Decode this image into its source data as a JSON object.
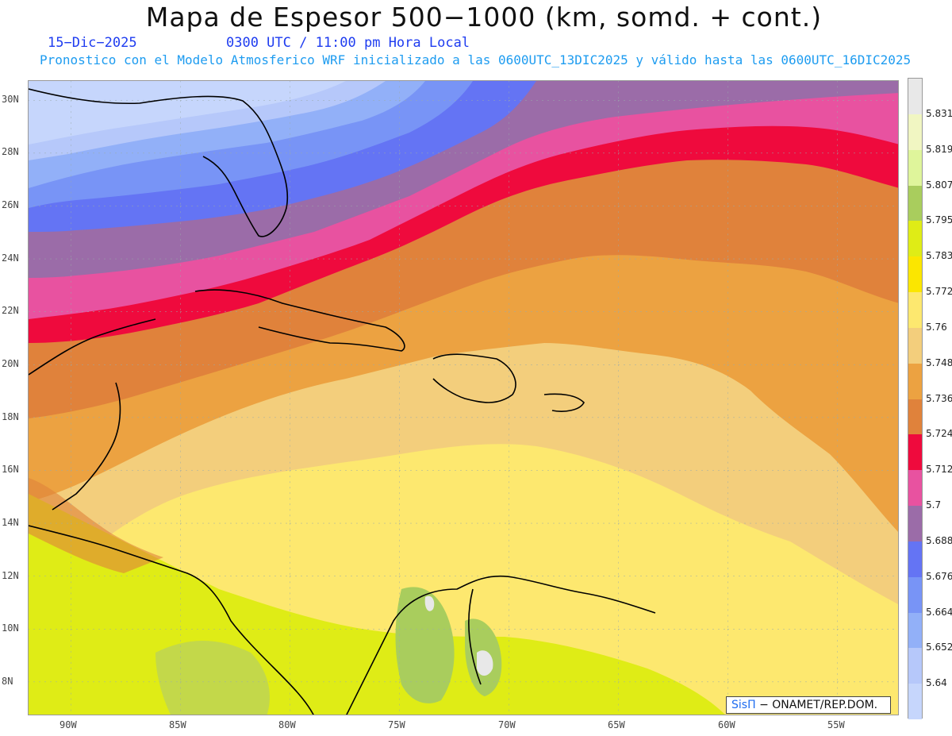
{
  "title": "Mapa de Espesor 500−1000 (km, somd. + cont.)",
  "date": "15−Dic−2025",
  "time": "0300 UTC / 11:00 pm Hora Local",
  "subtitle": "Pronostico con el Modelo Atmosferico WRF inicializado a las 0600UTC_13DIC2025 y válido hasta las  0600UTC_16DIC2025",
  "credit": {
    "brand": "SisΠ",
    "text": "− ONAMET/REP.DOM."
  },
  "lat_labels": [
    "30N",
    "28N",
    "26N",
    "24N",
    "22N",
    "20N",
    "18N",
    "16N",
    "14N",
    "12N",
    "10N",
    "8N"
  ],
  "lon_labels": [
    "90W",
    "85W",
    "80W",
    "75W",
    "70W",
    "65W",
    "60W",
    "55W"
  ],
  "legend": {
    "labels": [
      "5.831",
      "5.819",
      "5.807",
      "5.795",
      "5.783",
      "5.772",
      "5.76",
      "5.748",
      "5.736",
      "5.724",
      "5.712",
      "5.7",
      "5.688",
      "5.676",
      "5.664",
      "5.652",
      "5.64"
    ],
    "colors": [
      "#e8e8e8",
      "#f1f6c2",
      "#dff59b",
      "#a9cd5d",
      "#dfec16",
      "#fbe600",
      "#fde86f",
      "#f3ce7c",
      "#eca241",
      "#e0823b",
      "#ef0a3d",
      "#e852a0",
      "#9b6ca8",
      "#6474f4",
      "#7894f6",
      "#92b0f8",
      "#b6c8fa",
      "#c6d6fc"
    ]
  }
}
